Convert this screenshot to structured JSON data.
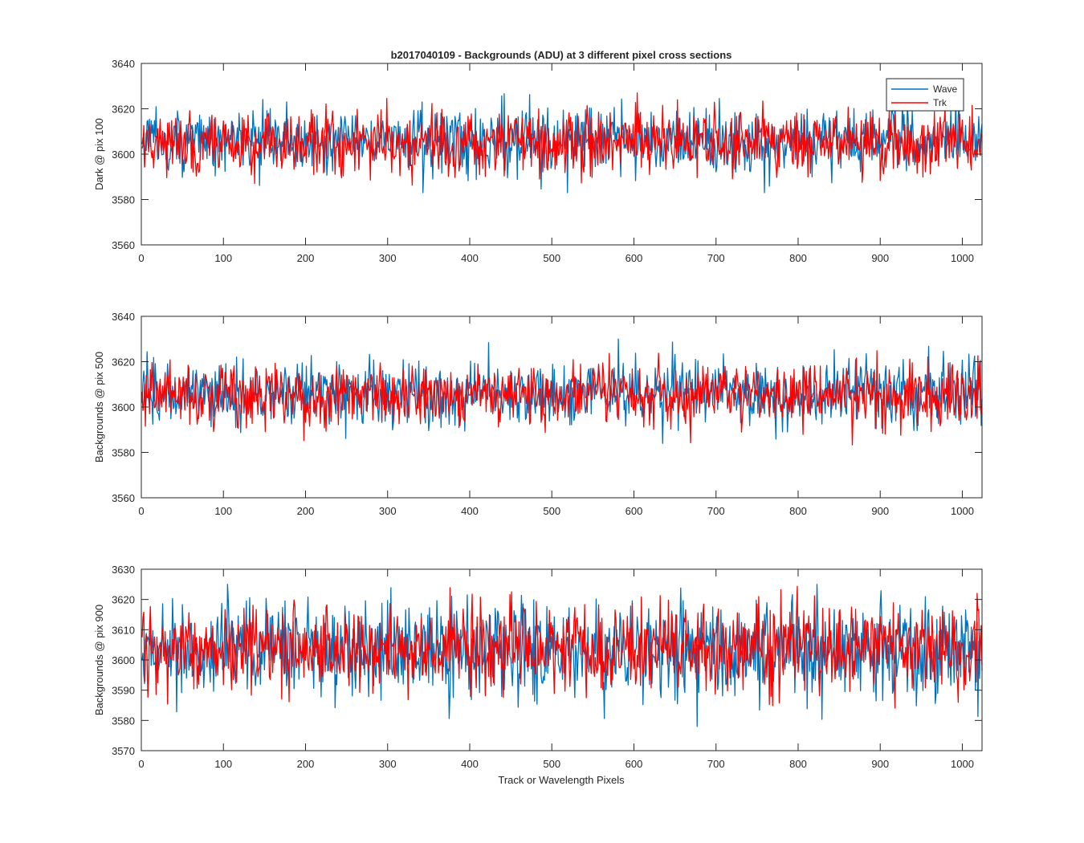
{
  "figure": {
    "title": "b2017040109 - Backgrounds (ADU) at 3 different pixel cross sections",
    "xlabel": "Track or Wavelength Pixels",
    "legend": {
      "placement": "top-right",
      "entries": [
        "Wave",
        "Trk"
      ]
    },
    "colors": {
      "Wave": "#0072BD",
      "Trk": "#FF0000",
      "axis": "#262626"
    }
  },
  "chart_data": [
    {
      "type": "line",
      "title": "b2017040109 - Backgrounds (ADU) at 3 different pixel cross sections",
      "xlabel": "",
      "ylabel": "Dark @ pix 100",
      "xlim": [
        0,
        1024
      ],
      "ylim": [
        3560,
        3640
      ],
      "xticks": [
        "0",
        "100",
        "200",
        "300",
        "400",
        "500",
        "600",
        "700",
        "800",
        "900",
        "1000"
      ],
      "yticks": [
        "3560",
        "3580",
        "3600",
        "3620",
        "3640"
      ],
      "grid": false,
      "legend": "top-right",
      "x_range": [
        1,
        1024
      ],
      "series": [
        {
          "name": "Wave",
          "mean": 3606,
          "noise_sd": 7,
          "min": 3583,
          "max": 3635
        },
        {
          "name": "Trk",
          "mean": 3605,
          "noise_sd": 7,
          "min": 3576,
          "max": 3627
        }
      ]
    },
    {
      "type": "line",
      "xlabel": "",
      "ylabel": "Backgrounds @ pix 500",
      "xlim": [
        0,
        1024
      ],
      "ylim": [
        3560,
        3640
      ],
      "xticks": [
        "0",
        "100",
        "200",
        "300",
        "400",
        "500",
        "600",
        "700",
        "800",
        "900",
        "1000"
      ],
      "yticks": [
        "3560",
        "3580",
        "3600",
        "3620",
        "3640"
      ],
      "grid": false,
      "x_range": [
        1,
        1024
      ],
      "series": [
        {
          "name": "Wave",
          "mean": 3606,
          "noise_sd": 7,
          "min": 3582,
          "max": 3630
        },
        {
          "name": "Trk",
          "mean": 3605,
          "noise_sd": 7,
          "min": 3575,
          "max": 3635
        }
      ]
    },
    {
      "type": "line",
      "xlabel": "Track or Wavelength Pixels",
      "ylabel": "Backgrounds @ pix 900",
      "xlim": [
        0,
        1024
      ],
      "ylim": [
        3570,
        3630
      ],
      "xticks": [
        "0",
        "100",
        "200",
        "300",
        "400",
        "500",
        "600",
        "700",
        "800",
        "900",
        "1000"
      ],
      "yticks": [
        "3570",
        "3580",
        "3590",
        "3600",
        "3610",
        "3620",
        "3630"
      ],
      "grid": false,
      "x_range": [
        1,
        1024
      ],
      "series": [
        {
          "name": "Wave",
          "mean": 3603,
          "noise_sd": 8,
          "min": 3578,
          "max": 3625
        },
        {
          "name": "Trk",
          "mean": 3604,
          "noise_sd": 7,
          "min": 3579,
          "max": 3630
        }
      ]
    }
  ]
}
